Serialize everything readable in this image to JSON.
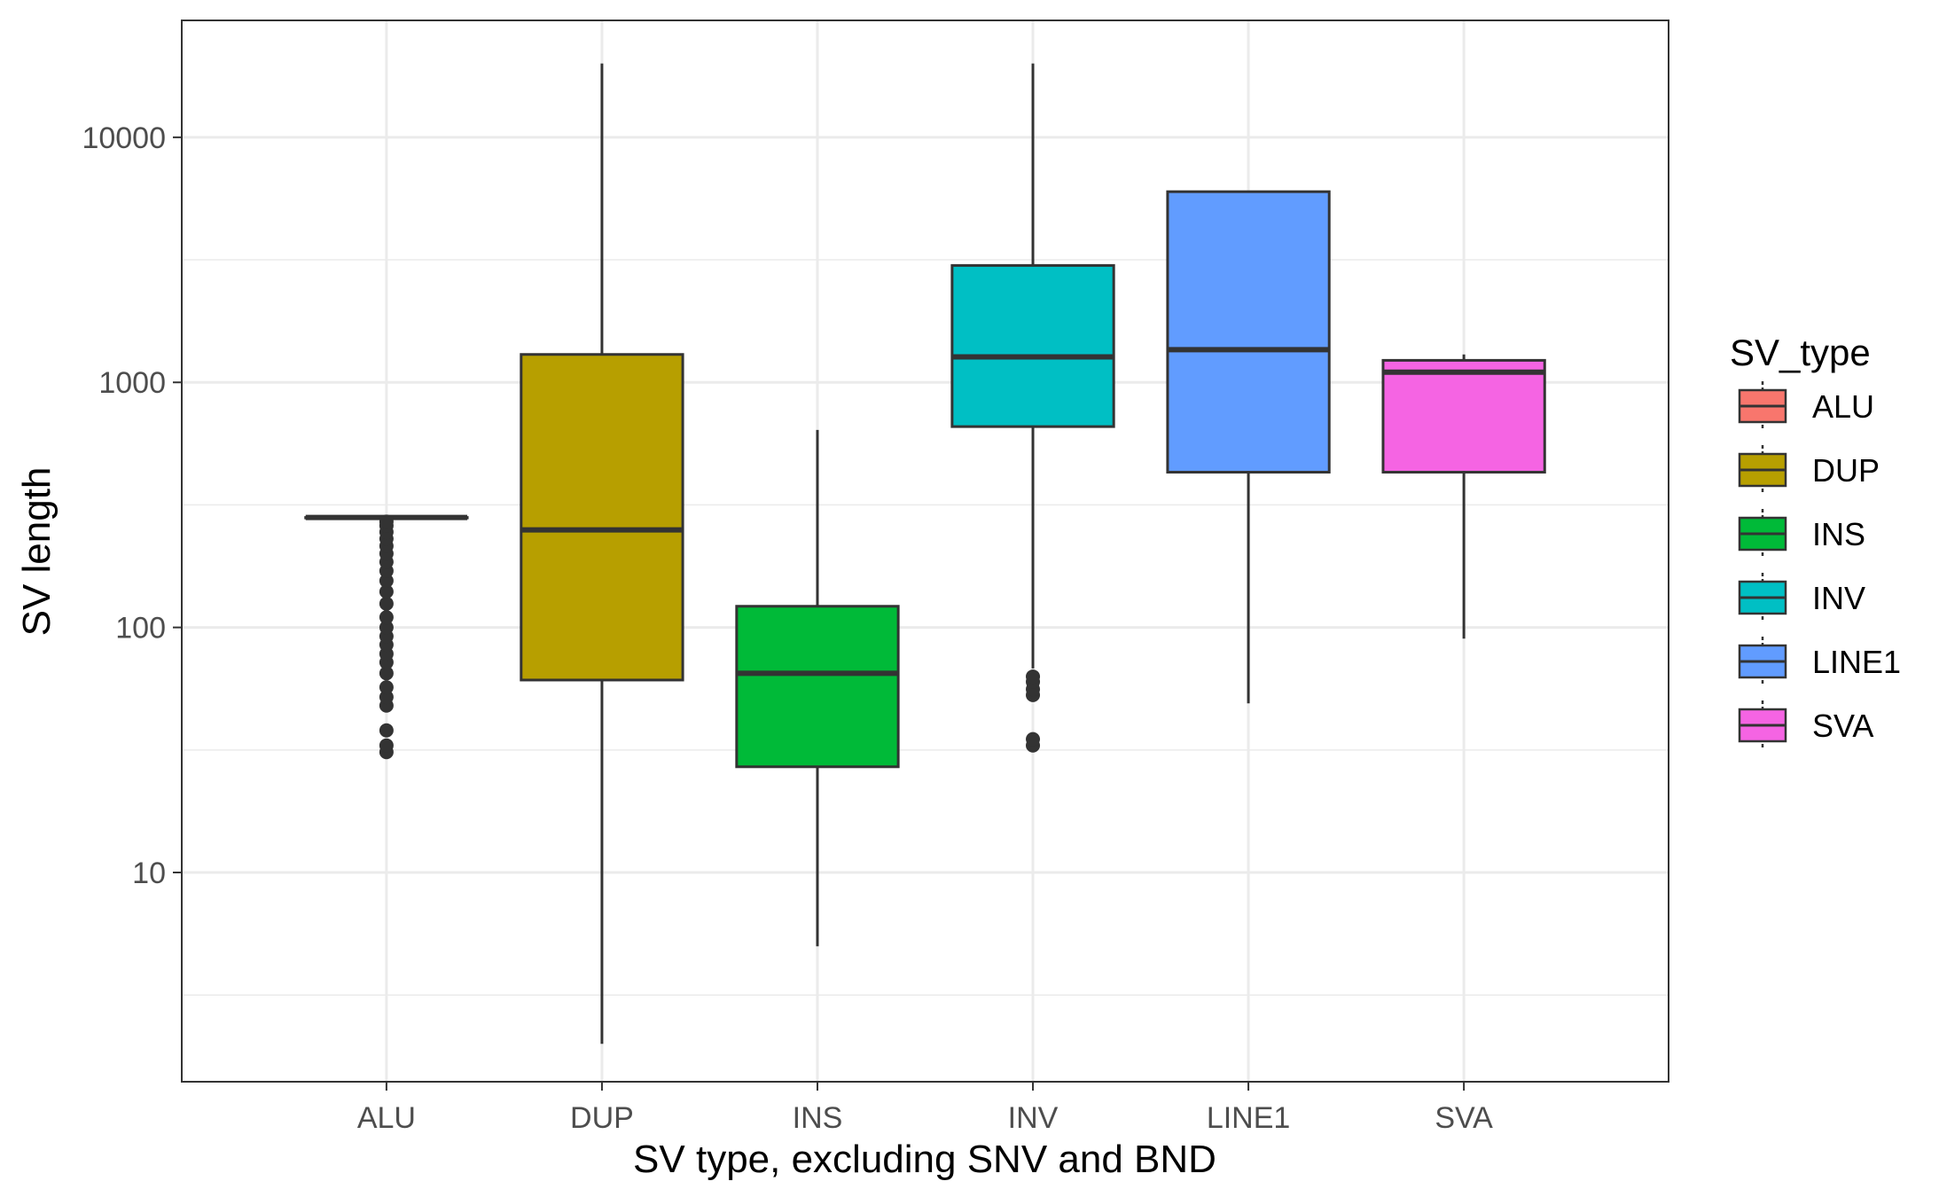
{
  "chart_data": {
    "type": "boxplot",
    "xlabel": "SV type, excluding SNV and BND",
    "ylabel": "SV length",
    "y_scale": "log10",
    "ylim": [
      1.4,
      30000
    ],
    "y_ticks": [
      10,
      100,
      1000,
      10000
    ],
    "y_tick_labels": [
      "10",
      "100",
      "1000",
      "10000"
    ],
    "grid": true,
    "categories": [
      "ALU",
      "DUP",
      "INS",
      "INV",
      "LINE1",
      "SVA"
    ],
    "legend": {
      "title": "SV_type",
      "position": "right",
      "entries": [
        "ALU",
        "DUP",
        "INS",
        "INV",
        "LINE1",
        "SVA"
      ]
    },
    "series": [
      {
        "category": "ALU",
        "color": "#F8766D",
        "whisker_low": 281,
        "q1": 281,
        "median": 281,
        "q3": 281,
        "whisker_high": 281,
        "outliers": [
          31,
          33,
          38,
          48,
          52,
          57,
          65,
          72,
          78,
          85,
          92,
          100,
          110,
          125,
          140,
          155,
          170,
          185,
          200,
          215,
          230,
          245,
          260,
          270
        ]
      },
      {
        "category": "DUP",
        "color": "#B79F00",
        "whisker_low": 2,
        "q1": 61,
        "median": 250,
        "q3": 1300,
        "whisker_high": 20000,
        "outliers": []
      },
      {
        "category": "INS",
        "color": "#00BA38",
        "whisker_low": 5,
        "q1": 27,
        "median": 65,
        "q3": 122,
        "whisker_high": 640,
        "outliers": []
      },
      {
        "category": "INV",
        "color": "#00BFC4",
        "whisker_low": 68,
        "q1": 660,
        "median": 1270,
        "q3": 3000,
        "whisker_high": 20000,
        "outliers": [
          33,
          35,
          53,
          56,
          60,
          63
        ]
      },
      {
        "category": "LINE1",
        "color": "#619CFF",
        "whisker_low": 49,
        "q1": 430,
        "median": 1360,
        "q3": 6000,
        "whisker_high": 6000,
        "outliers": []
      },
      {
        "category": "SVA",
        "color": "#F564E3",
        "whisker_low": 90,
        "q1": 430,
        "median": 1100,
        "q3": 1230,
        "whisker_high": 1300,
        "outliers": []
      }
    ]
  }
}
